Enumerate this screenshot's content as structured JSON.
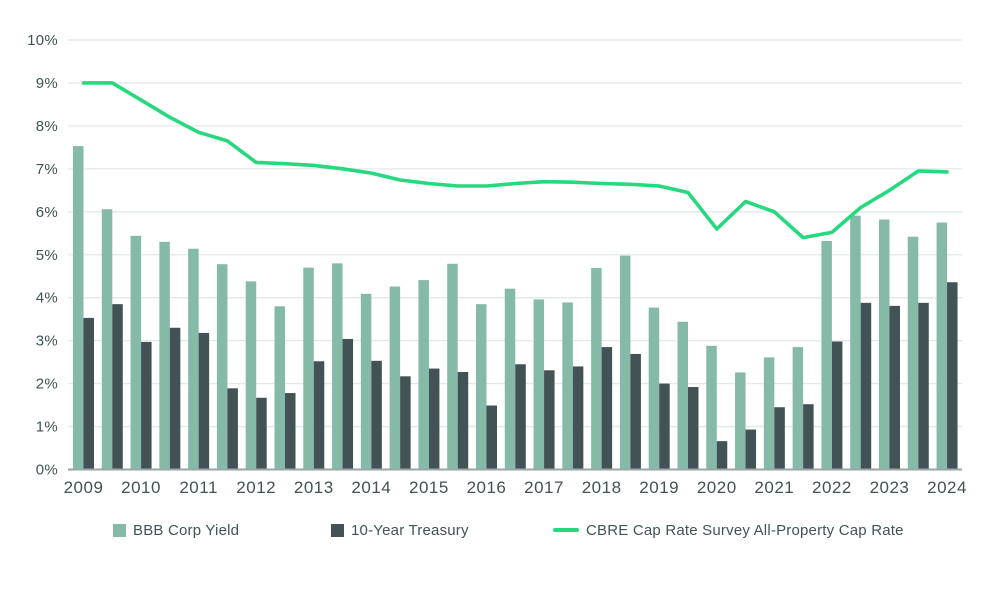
{
  "chart_data": {
    "type": "combo-bar-line",
    "title": "",
    "frequency": "semiannual",
    "periods": [
      "2009 H1",
      "2009 H2",
      "2010 H1",
      "2010 H2",
      "2011 H1",
      "2011 H2",
      "2012 H1",
      "2012 H2",
      "2013 H1",
      "2013 H2",
      "2014 H1",
      "2014 H2",
      "2015 H1",
      "2015 H2",
      "2016 H1",
      "2016 H2",
      "2017 H1",
      "2017 H2",
      "2018 H1",
      "2018 H2",
      "2019 H1",
      "2019 H2",
      "2020 H1",
      "2020 H2",
      "2021 H1",
      "2021 H2",
      "2022 H1",
      "2022 H2",
      "2023 H1",
      "2023 H2",
      "2024 H1"
    ],
    "year_labels": [
      "2009",
      "2010",
      "2011",
      "2012",
      "2013",
      "2014",
      "2015",
      "2016",
      "2017",
      "2018",
      "2019",
      "2020",
      "2021",
      "2022",
      "2023",
      "2024"
    ],
    "series": [
      {
        "name": "BBB Corp Yield",
        "type": "bar",
        "color": "#85baa9",
        "values": [
          7.53,
          6.06,
          5.44,
          5.3,
          5.14,
          4.78,
          4.38,
          3.8,
          4.7,
          4.8,
          4.09,
          4.26,
          4.41,
          4.79,
          3.85,
          4.21,
          3.96,
          3.89,
          4.69,
          4.98,
          3.77,
          3.44,
          2.88,
          2.26,
          2.61,
          2.85,
          5.32,
          5.91,
          5.82,
          5.42,
          5.75
        ]
      },
      {
        "name": "10-Year Treasury",
        "type": "bar",
        "color": "#435254",
        "values": [
          3.53,
          3.85,
          2.97,
          3.3,
          3.18,
          1.89,
          1.67,
          1.78,
          2.52,
          3.04,
          2.53,
          2.17,
          2.35,
          2.27,
          1.49,
          2.45,
          2.31,
          2.4,
          2.85,
          2.69,
          2.0,
          1.92,
          0.66,
          0.93,
          1.45,
          1.52,
          2.98,
          3.88,
          3.81,
          3.88,
          4.36
        ]
      },
      {
        "name": "CBRE Cap Rate Survey All-Property Cap Rate",
        "type": "line",
        "color": "#26d87e",
        "values": [
          9.0,
          9.0,
          8.6,
          8.2,
          7.85,
          7.65,
          7.15,
          7.12,
          7.08,
          7.0,
          6.9,
          6.74,
          6.66,
          6.6,
          6.6,
          6.66,
          6.7,
          6.69,
          6.66,
          6.64,
          6.6,
          6.45,
          5.6,
          6.24,
          6.0,
          5.4,
          5.52,
          6.1,
          6.5,
          6.95,
          6.93
        ]
      }
    ],
    "y_axis": {
      "min": 0,
      "max": 10,
      "tick_step": 1,
      "tick_labels": [
        "0%",
        "1%",
        "2%",
        "3%",
        "4%",
        "5%",
        "6%",
        "7%",
        "8%",
        "9%",
        "10%"
      ]
    },
    "x_axis_label": "",
    "y_axis_label": "",
    "grid": true,
    "legend_position": "bottom"
  },
  "style": {
    "grid_color": "#e3e8e8",
    "baseline_color": "#9aa5a6",
    "axis_text_color": "#435254",
    "background": "#ffffff"
  }
}
